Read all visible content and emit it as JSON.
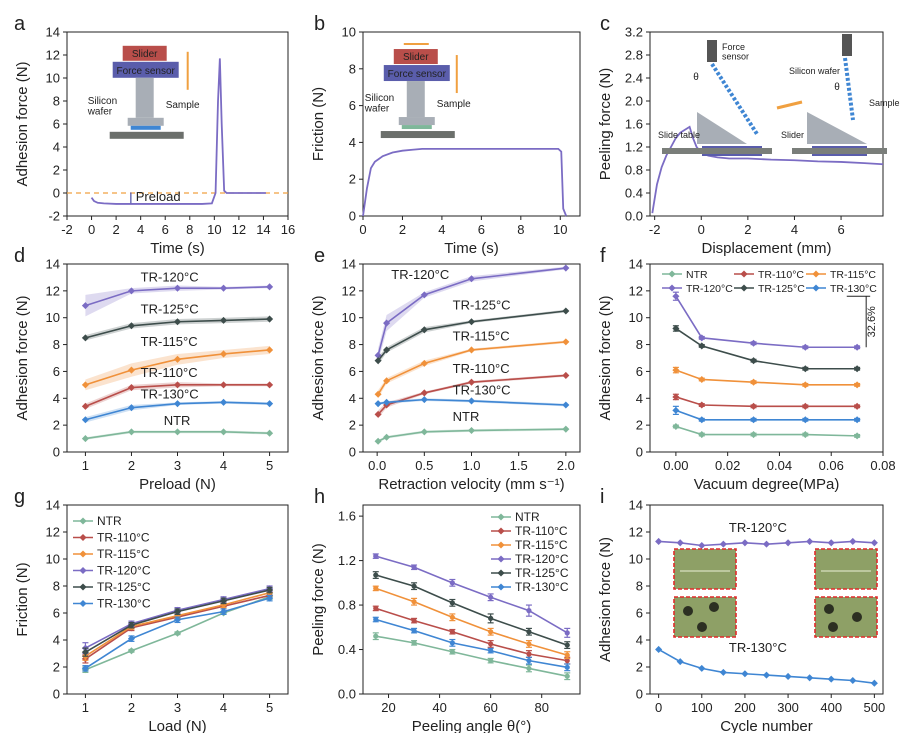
{
  "colors": {
    "NTR": "#7fb79a",
    "TR-110": "#b94e4a",
    "TR-115": "#f0913a",
    "TR-120": "#7b6cc4",
    "TR-125": "#3d4d4b",
    "TR-130": "#3f86d3",
    "preload_line": "#f0a040",
    "red_inset": "#b94e4a",
    "blue_inset": "#5a5dab",
    "grey_inset": "#a8aeb6",
    "photo_bg": "#8ea066",
    "frame_red": "#e02a2a"
  },
  "chart_data": [
    {
      "panel": "a",
      "type": "line",
      "xlabel": "Time (s)",
      "ylabel": "Adhesion force (N)",
      "xlim": [
        -2,
        16
      ],
      "ylim": [
        -2,
        14
      ],
      "xticks": [
        "-2",
        "0",
        "2",
        "4",
        "6",
        "8",
        "10",
        "12",
        "14",
        "16"
      ],
      "yticks": [
        "-2",
        "0",
        "2",
        "4",
        "6",
        "8",
        "10",
        "12",
        "14"
      ],
      "series": [
        {
          "name": "adhesion",
          "color": "TR-120",
          "x": [
            0,
            0.2,
            0.5,
            1,
            2,
            3,
            4,
            5,
            6,
            7,
            8,
            9,
            9.8,
            10.1,
            10.3,
            10.45,
            10.6,
            10.8,
            11,
            12,
            13,
            14.2
          ],
          "y": [
            -0.4,
            -0.7,
            -0.85,
            -0.9,
            -0.95,
            -0.95,
            -0.95,
            -0.95,
            -0.95,
            -0.95,
            -0.95,
            -0.95,
            -0.9,
            0,
            8,
            11.7,
            6,
            0.2,
            0,
            0,
            0,
            0
          ]
        }
      ],
      "annotations": {
        "preload": "Preload",
        "inset_slider": "Slider",
        "inset_sensor": "Force sensor",
        "inset_wafer": "Silicon\nwafer",
        "inset_sample": "Sample"
      }
    },
    {
      "panel": "b",
      "type": "line",
      "xlabel": "Time (s)",
      "ylabel": "Friction (N)",
      "xlim": [
        0,
        11
      ],
      "ylim": [
        0,
        10
      ],
      "xticks": [
        "0",
        "2",
        "4",
        "6",
        "8",
        "10"
      ],
      "yticks": [
        "0",
        "2",
        "4",
        "6",
        "8",
        "10"
      ],
      "series": [
        {
          "name": "friction",
          "color": "TR-120",
          "x": [
            0,
            0.2,
            0.4,
            0.6,
            0.8,
            1.0,
            1.5,
            2,
            2.5,
            3,
            4,
            5,
            6,
            7,
            8,
            9,
            9.9,
            10.05,
            10.15,
            10.3
          ],
          "y": [
            0,
            1.5,
            2.6,
            2.95,
            3.1,
            3.25,
            3.45,
            3.55,
            3.6,
            3.65,
            3.65,
            3.65,
            3.65,
            3.65,
            3.65,
            3.65,
            3.65,
            3.5,
            0.4,
            0
          ]
        }
      ],
      "annotations": {
        "inset_slider": "Slider",
        "inset_sensor": "Force sensor",
        "inset_wafer": "Silicon\nwafer",
        "inset_sample": "Sample"
      }
    },
    {
      "panel": "c",
      "type": "line",
      "xlabel": "Displacement (mm)",
      "ylabel": "Peeling force (N)",
      "xlim": [
        -2.2,
        7.8
      ],
      "ylim": [
        0,
        3.2
      ],
      "xticks": [
        "-2",
        "0",
        "2",
        "4",
        "6"
      ],
      "yticks": [
        "0.0",
        "0.4",
        "0.8",
        "1.2",
        "1.6",
        "2.0",
        "2.4",
        "2.8",
        "3.2"
      ],
      "series": [
        {
          "name": "peeling",
          "color": "TR-120",
          "x": [
            -2.1,
            -1.9,
            -1.7,
            -1.5,
            -1.3,
            -1.1,
            -0.9,
            -0.7,
            -0.5,
            -0.35,
            -0.2,
            0,
            0.3,
            0.7,
            1.2,
            2,
            3,
            4,
            5,
            6,
            7,
            7.8
          ],
          "y": [
            0.05,
            0.55,
            0.85,
            1.05,
            1.2,
            1.35,
            1.45,
            1.5,
            1.55,
            1.35,
            1.2,
            1.1,
            1.05,
            1.02,
            1.0,
            1.0,
            0.98,
            0.97,
            0.95,
            0.94,
            0.92,
            0.9
          ]
        }
      ],
      "annotations": {
        "force_sensor": "Force\nsensor",
        "silicon_wafer": "Silicon wafer",
        "sample": "Sample",
        "slide_table": "Slide table",
        "slider": "Slider",
        "theta": "θ"
      }
    },
    {
      "panel": "d",
      "type": "line",
      "xlabel": "Preload (N)",
      "ylabel": "Adhesion force (N)",
      "xlim": [
        0.6,
        5.4
      ],
      "ylim": [
        0,
        14
      ],
      "xticks": [
        "1",
        "2",
        "3",
        "4",
        "5"
      ],
      "yticks": [
        "0",
        "2",
        "4",
        "6",
        "8",
        "10",
        "12",
        "14"
      ],
      "x": [
        1,
        2,
        3,
        4,
        5
      ],
      "series": [
        {
          "name": "TR-120°C",
          "color": "TR-120",
          "values": [
            10.9,
            12.0,
            12.2,
            12.2,
            12.3
          ],
          "err": [
            0.8,
            0.2,
            0.2,
            0.1,
            0.1
          ]
        },
        {
          "name": "TR-125°C",
          "color": "TR-125",
          "values": [
            8.5,
            9.4,
            9.7,
            9.8,
            9.9
          ],
          "err": [
            0.2,
            0.2,
            0.2,
            0.2,
            0.2
          ]
        },
        {
          "name": "TR-115°C",
          "color": "TR-115",
          "values": [
            5.0,
            6.1,
            6.9,
            7.3,
            7.6
          ],
          "err": [
            0.4,
            0.5,
            0.4,
            0.3,
            0.3
          ]
        },
        {
          "name": "TR-110°C",
          "color": "TR-110",
          "values": [
            3.4,
            4.8,
            5.0,
            5.0,
            5.0
          ],
          "err": [
            0.2,
            0.2,
            0.2,
            0.1,
            0.1
          ]
        },
        {
          "name": "TR-130°C",
          "color": "TR-130",
          "values": [
            2.4,
            3.3,
            3.6,
            3.7,
            3.6
          ],
          "err": [
            0.2,
            0.2,
            0.1,
            0.1,
            0.1
          ]
        },
        {
          "name": "NTR",
          "color": "NTR",
          "values": [
            1.0,
            1.5,
            1.5,
            1.5,
            1.4
          ],
          "err": [
            0.1,
            0.1,
            0.1,
            0.1,
            0.1
          ]
        }
      ]
    },
    {
      "panel": "e",
      "type": "line",
      "xlabel": "Retraction velocity (mm s⁻¹)",
      "ylabel": "Adhesion force (N)",
      "xlim": [
        -0.15,
        2.15
      ],
      "ylim": [
        0,
        14
      ],
      "xticks": [
        "0.0",
        "0.5",
        "1.0",
        "1.5",
        "2.0"
      ],
      "yticks": [
        "0",
        "2",
        "4",
        "6",
        "8",
        "10",
        "12",
        "14"
      ],
      "x": [
        0.01,
        0.1,
        0.5,
        1.0,
        2.0
      ],
      "series": [
        {
          "name": "TR-120°C",
          "color": "TR-120",
          "values": [
            7.2,
            9.6,
            11.7,
            12.9,
            13.7
          ],
          "err": [
            0.5,
            0.6,
            0.2,
            0.2,
            0.1
          ]
        },
        {
          "name": "TR-125°C",
          "color": "TR-125",
          "values": [
            6.8,
            7.6,
            9.1,
            9.7,
            10.5
          ],
          "err": [
            0.3,
            0.2,
            0.2,
            0.1,
            0.1
          ]
        },
        {
          "name": "TR-115°C",
          "color": "TR-115",
          "values": [
            4.3,
            5.3,
            6.6,
            7.6,
            8.2
          ],
          "err": [
            0.3,
            0.2,
            0.2,
            0.1,
            0.1
          ]
        },
        {
          "name": "TR-110°C",
          "color": "TR-110",
          "values": [
            2.8,
            3.5,
            4.4,
            5.2,
            5.7
          ],
          "err": [
            0.3,
            0.2,
            0.1,
            0.1,
            0.1
          ]
        },
        {
          "name": "TR-130°C",
          "color": "TR-130",
          "values": [
            3.6,
            3.7,
            3.9,
            3.8,
            3.5
          ],
          "err": [
            0.1,
            0.1,
            0.1,
            0.1,
            0.1
          ]
        },
        {
          "name": "NTR",
          "color": "NTR",
          "values": [
            0.8,
            1.1,
            1.5,
            1.6,
            1.7
          ],
          "err": [
            0.1,
            0.1,
            0.1,
            0.1,
            0.1
          ]
        }
      ]
    },
    {
      "panel": "f",
      "type": "line",
      "xlabel": "Vacuum degree(MPa)",
      "ylabel": "Adhesion force (N)",
      "xlim": [
        -0.01,
        0.08
      ],
      "ylim": [
        0,
        14
      ],
      "xticks": [
        "0.00",
        "0.02",
        "0.04",
        "0.06",
        "0.08"
      ],
      "yticks": [
        "0",
        "2",
        "4",
        "6",
        "8",
        "10",
        "12",
        "14"
      ],
      "x": [
        0,
        0.01,
        0.03,
        0.05,
        0.07
      ],
      "annotation": "32.6%",
      "series": [
        {
          "name": "NTR",
          "color": "NTR",
          "values": [
            1.9,
            1.3,
            1.3,
            1.3,
            1.2
          ],
          "err": [
            0.1,
            0.1,
            0.1,
            0.1,
            0.1
          ]
        },
        {
          "name": "TR-110°C",
          "color": "TR-110",
          "values": [
            4.1,
            3.5,
            3.4,
            3.4,
            3.4
          ],
          "err": [
            0.2,
            0.1,
            0.1,
            0.1,
            0.1
          ]
        },
        {
          "name": "TR-115°C",
          "color": "TR-115",
          "values": [
            6.1,
            5.4,
            5.2,
            5.0,
            5.0
          ],
          "err": [
            0.2,
            0.1,
            0.1,
            0.1,
            0.1
          ]
        },
        {
          "name": "TR-120°C",
          "color": "TR-120",
          "values": [
            11.6,
            8.5,
            8.1,
            7.8,
            7.8
          ],
          "err": [
            0.3,
            0.1,
            0.1,
            0.1,
            0.1
          ]
        },
        {
          "name": "TR-125°C",
          "color": "TR-125",
          "values": [
            9.2,
            7.9,
            6.8,
            6.2,
            6.2
          ],
          "err": [
            0.2,
            0.1,
            0.1,
            0.1,
            0.1
          ]
        },
        {
          "name": "TR-130°C",
          "color": "TR-130",
          "values": [
            3.1,
            2.4,
            2.4,
            2.4,
            2.4
          ],
          "err": [
            0.3,
            0.1,
            0.1,
            0.1,
            0.1
          ]
        }
      ]
    },
    {
      "panel": "g",
      "type": "line",
      "xlabel": "Load (N)",
      "ylabel": "Friction (N)",
      "xlim": [
        0.6,
        5.4
      ],
      "ylim": [
        0,
        14
      ],
      "xticks": [
        "1",
        "2",
        "3",
        "4",
        "5"
      ],
      "yticks": [
        "0",
        "2",
        "4",
        "6",
        "8",
        "10",
        "12",
        "14"
      ],
      "x": [
        1,
        2,
        3,
        4,
        5
      ],
      "series": [
        {
          "name": "NTR",
          "color": "NTR",
          "values": [
            1.8,
            3.2,
            4.5,
            6.0,
            7.2
          ],
          "err": [
            0.2,
            0.1,
            0.1,
            0.1,
            0.2
          ]
        },
        {
          "name": "TR-110°C",
          "color": "TR-110",
          "values": [
            2.6,
            4.9,
            5.7,
            6.5,
            7.3
          ],
          "err": [
            0.3,
            0.2,
            0.2,
            0.2,
            0.2
          ]
        },
        {
          "name": "TR-115°C",
          "color": "TR-115",
          "values": [
            2.8,
            5.0,
            5.8,
            6.6,
            7.5
          ],
          "err": [
            0.3,
            0.2,
            0.2,
            0.2,
            0.2
          ]
        },
        {
          "name": "TR-120°C",
          "color": "TR-120",
          "values": [
            3.4,
            5.2,
            6.2,
            7.0,
            7.8
          ],
          "err": [
            0.4,
            0.2,
            0.2,
            0.2,
            0.2
          ]
        },
        {
          "name": "TR-125°C",
          "color": "TR-125",
          "values": [
            3.1,
            5.1,
            6.1,
            6.9,
            7.7
          ],
          "err": [
            0.3,
            0.2,
            0.2,
            0.2,
            0.2
          ]
        },
        {
          "name": "TR-130°C",
          "color": "TR-130",
          "values": [
            1.9,
            4.1,
            5.5,
            6.1,
            7.1
          ],
          "err": [
            0.2,
            0.2,
            0.2,
            0.2,
            0.2
          ]
        }
      ]
    },
    {
      "panel": "h",
      "type": "line",
      "xlabel": "Peeling angle θ(°)",
      "ylabel": "Peeling force (N)",
      "xlim": [
        10,
        95
      ],
      "ylim": [
        0,
        1.7
      ],
      "xticks": [
        "20",
        "40",
        "60",
        "80"
      ],
      "yticks": [
        "0.0",
        "0.4",
        "0.8",
        "1.2",
        "1.6"
      ],
      "x": [
        15,
        30,
        45,
        60,
        75,
        90
      ],
      "series": [
        {
          "name": "NTR",
          "color": "NTR",
          "values": [
            0.52,
            0.46,
            0.38,
            0.3,
            0.23,
            0.16
          ],
          "err": [
            0.03,
            0.02,
            0.02,
            0.02,
            0.03,
            0.03
          ]
        },
        {
          "name": "TR-110°C",
          "color": "TR-110",
          "values": [
            0.77,
            0.66,
            0.56,
            0.45,
            0.36,
            0.3
          ],
          "err": [
            0.02,
            0.02,
            0.02,
            0.03,
            0.03,
            0.03
          ]
        },
        {
          "name": "TR-115°C",
          "color": "TR-115",
          "values": [
            0.95,
            0.83,
            0.69,
            0.56,
            0.45,
            0.35
          ],
          "err": [
            0.02,
            0.03,
            0.03,
            0.03,
            0.03,
            0.03
          ]
        },
        {
          "name": "TR-120°C",
          "color": "TR-120",
          "values": [
            1.24,
            1.14,
            1.0,
            0.87,
            0.75,
            0.55
          ],
          "err": [
            0.02,
            0.02,
            0.03,
            0.03,
            0.05,
            0.04
          ]
        },
        {
          "name": "TR-125°C",
          "color": "TR-125",
          "values": [
            1.07,
            0.97,
            0.82,
            0.68,
            0.56,
            0.44
          ],
          "err": [
            0.03,
            0.03,
            0.03,
            0.04,
            0.03,
            0.03
          ]
        },
        {
          "name": "TR-130°C",
          "color": "TR-130",
          "values": [
            0.67,
            0.57,
            0.46,
            0.39,
            0.3,
            0.24
          ],
          "err": [
            0.02,
            0.02,
            0.03,
            0.02,
            0.03,
            0.03
          ]
        }
      ]
    },
    {
      "panel": "i",
      "type": "line",
      "xlabel": "Cycle number",
      "ylabel": "Adhesion force (N)",
      "xlim": [
        -20,
        520
      ],
      "ylim": [
        0,
        14
      ],
      "xticks": [
        "0",
        "100",
        "200",
        "300",
        "400",
        "500"
      ],
      "yticks": [
        "0",
        "2",
        "4",
        "6",
        "8",
        "10",
        "12",
        "14"
      ],
      "x": [
        0,
        50,
        100,
        150,
        200,
        250,
        300,
        350,
        400,
        450,
        500
      ],
      "series": [
        {
          "name": "TR-120°C",
          "color": "TR-120",
          "values": [
            11.3,
            11.2,
            11.0,
            11.1,
            11.2,
            11.1,
            11.2,
            11.3,
            11.2,
            11.3,
            11.2
          ]
        },
        {
          "name": "TR-130°C",
          "color": "TR-130",
          "values": [
            3.3,
            2.4,
            1.9,
            1.6,
            1.5,
            1.4,
            1.3,
            1.2,
            1.1,
            1.0,
            0.8
          ]
        }
      ]
    }
  ],
  "labels": {
    "d_TR120": "TR-120°C",
    "d_TR125": "TR-125°C",
    "d_TR115": "TR-115°C",
    "d_TR110": "TR-110°C",
    "d_TR130": "TR-130°C",
    "d_NTR": "NTR",
    "e_TR120": "TR-120°C",
    "e_TR125": "TR-125°C",
    "e_TR115": "TR-115°C",
    "e_TR110": "TR-110°C",
    "e_TR130": "TR-130°C",
    "e_NTR": "NTR",
    "i_TR120": "TR-120°C",
    "i_TR130": "TR-130°C"
  }
}
